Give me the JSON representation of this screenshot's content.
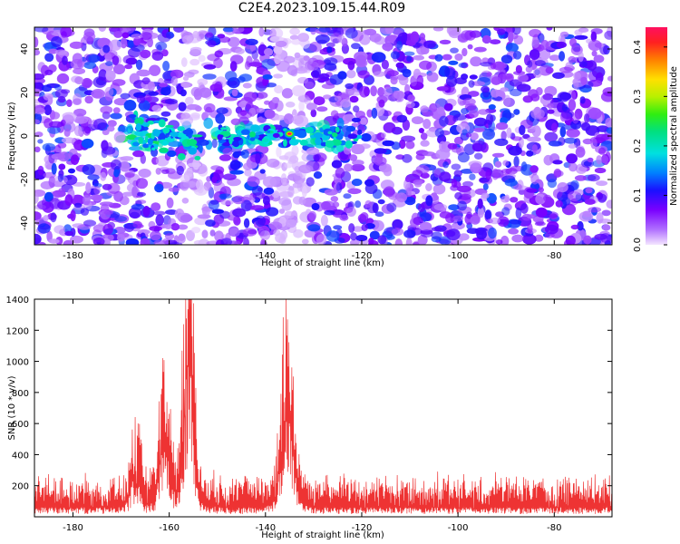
{
  "title": "C2E4.2023.109.15.44.R09",
  "chart_data": [
    {
      "type": "heatmap",
      "xlabel": "Height of straight line (km)",
      "ylabel": "Frequency (Hz)",
      "xlim": [
        -188,
        -68
      ],
      "ylim": [
        -50,
        50
      ],
      "xticks": [
        -180,
        -160,
        -140,
        -120,
        -100,
        -80
      ],
      "yticks": [
        -40,
        -20,
        0,
        20,
        40
      ],
      "colorbar": {
        "label": "Normalized spectral amplitude",
        "range": [
          0,
          0.44
        ],
        "ticks": [
          0.0,
          0.1,
          0.2,
          0.3,
          0.4
        ]
      },
      "bright_band": {
        "x_range": [
          -170,
          -122
        ],
        "frequency_center": 0
      },
      "peak": {
        "x": -135,
        "y": 1,
        "value": 0.44
      },
      "gaps_x": [
        [
          -157,
          -152
        ],
        [
          -138,
          -131
        ]
      ]
    },
    {
      "type": "line",
      "xlabel": "Height of straight line (km)",
      "ylabel": "SNR (10 * v/v)",
      "xlim": [
        -188,
        -68
      ],
      "ylim": [
        0,
        1400
      ],
      "xticks": [
        -180,
        -160,
        -140,
        -120,
        -100,
        -80
      ],
      "yticks": [
        200,
        400,
        600,
        800,
        1000,
        1200,
        1400
      ],
      "color": "#ee3333",
      "baseline": 120,
      "noise_amplitude": 160,
      "peaks": [
        {
          "x": -155.5,
          "value": 1400
        },
        {
          "x": -156.5,
          "value": 1200
        },
        {
          "x": -161,
          "value": 870
        },
        {
          "x": -135,
          "value": 890
        },
        {
          "x": -136,
          "value": 770
        },
        {
          "x": -167,
          "value": 520
        }
      ]
    }
  ]
}
